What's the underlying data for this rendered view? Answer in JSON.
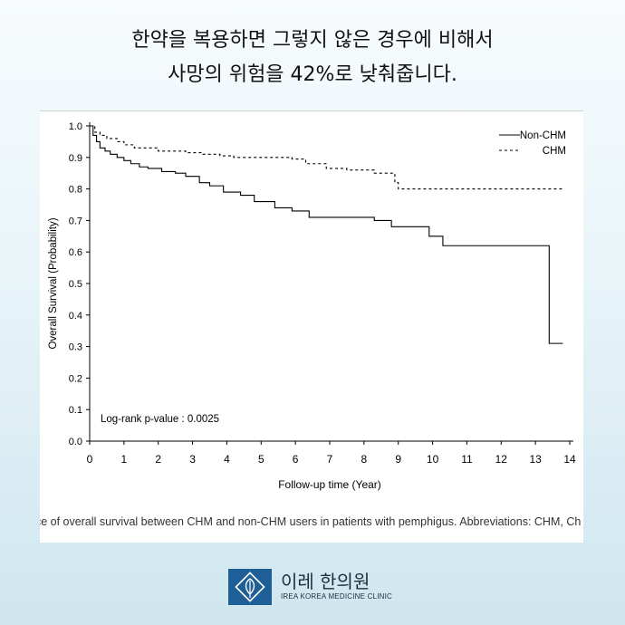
{
  "headline": {
    "line1": "한약을 복용하면 그렇지 않은 경우에 비해서",
    "line2": "사망의 위험을 42%로 낮춰줍니다."
  },
  "caption": "nce of overall survival between CHM and non-CHM users in patients with pemphigus. Abbreviations: CHM, Ch",
  "logo": {
    "name": "이레 한의원",
    "subtitle": "IREA KOREA MEDICINE CLINIC",
    "brand_color": "#1f5f97"
  },
  "chart_data": {
    "type": "line",
    "xlabel": "Follow-up time (Year)",
    "ylabel": "Overall Survival (Probability)",
    "xlim": [
      0,
      14
    ],
    "ylim": [
      0,
      1
    ],
    "x_ticks": [
      "0",
      "1",
      "2",
      "3",
      "4",
      "5",
      "6",
      "7",
      "8",
      "9",
      "10",
      "11",
      "12",
      "13",
      "14"
    ],
    "y_ticks": [
      "0.0",
      "0.1",
      "0.2",
      "0.3",
      "0.4",
      "0.5",
      "0.6",
      "0.7",
      "0.8",
      "0.9",
      "1.0"
    ],
    "step": true,
    "grid": false,
    "legend_position": "top-right",
    "annotation": "Log-rank p-value : 0.0025",
    "series": [
      {
        "name": "Non-CHM",
        "style": "solid",
        "color": "#000000",
        "x": [
          0,
          0.1,
          0.2,
          0.3,
          0.45,
          0.6,
          0.8,
          1.0,
          1.2,
          1.45,
          1.7,
          2.1,
          2.5,
          2.8,
          3.2,
          3.5,
          3.9,
          4.4,
          4.8,
          5.4,
          5.9,
          6.4,
          7.3,
          7.8,
          8.3,
          8.8,
          9.9,
          10.3,
          11.0,
          13.0,
          13.4,
          13.8
        ],
        "y": [
          1.0,
          0.97,
          0.95,
          0.93,
          0.92,
          0.91,
          0.9,
          0.89,
          0.88,
          0.87,
          0.865,
          0.855,
          0.85,
          0.84,
          0.82,
          0.81,
          0.79,
          0.78,
          0.76,
          0.74,
          0.73,
          0.71,
          0.71,
          0.71,
          0.7,
          0.68,
          0.65,
          0.62,
          0.62,
          0.62,
          0.31,
          0.31
        ]
      },
      {
        "name": "CHM",
        "style": "dashed",
        "color": "#000000",
        "x": [
          0,
          0.15,
          0.3,
          0.5,
          0.8,
          1.0,
          1.3,
          1.7,
          2.0,
          2.4,
          2.8,
          3.3,
          3.8,
          4.2,
          4.7,
          5.3,
          5.9,
          6.3,
          6.9,
          7.5,
          7.9,
          8.3,
          8.9,
          9.0,
          13.8
        ],
        "y": [
          1.0,
          0.98,
          0.97,
          0.96,
          0.95,
          0.94,
          0.93,
          0.93,
          0.92,
          0.92,
          0.915,
          0.91,
          0.905,
          0.9,
          0.9,
          0.9,
          0.895,
          0.88,
          0.865,
          0.86,
          0.86,
          0.85,
          0.82,
          0.8,
          0.8
        ]
      }
    ]
  }
}
